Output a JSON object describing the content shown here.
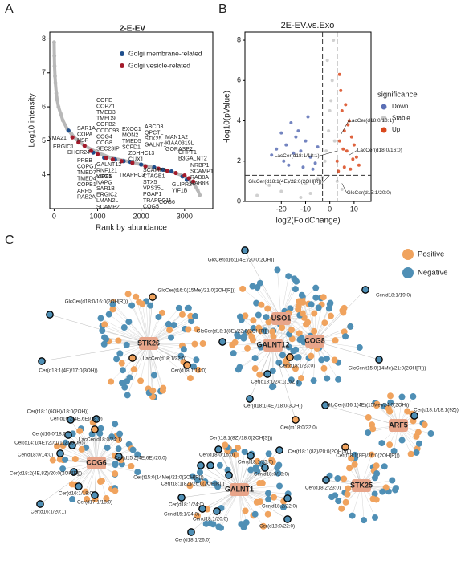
{
  "panels": [
    "A",
    "B",
    "C"
  ],
  "chart_data": [
    {
      "type": "rank",
      "title": "2-E-EV",
      "xlabel": "Rank by abundance",
      "ylabel": "Log10 intensity",
      "xlim": [
        -100,
        3650
      ],
      "xticks": [
        0,
        1000,
        2000,
        3000
      ],
      "ylim": [
        3,
        8.2
      ],
      "yticks": [
        4,
        5,
        6,
        7,
        8
      ],
      "curve": {
        "color": "#b8b8b8",
        "x": [
          0,
          5,
          10,
          20,
          30,
          50,
          70,
          100,
          150,
          200,
          300,
          400,
          500,
          700,
          1000,
          1300,
          1600,
          2000,
          2400,
          2800,
          3000,
          3200,
          3300,
          3350
        ],
        "y": [
          7.9,
          7.5,
          7.2,
          6.9,
          6.7,
          6.4,
          6.2,
          6.0,
          5.8,
          5.6,
          5.35,
          5.2,
          5.05,
          4.85,
          4.65,
          4.5,
          4.42,
          4.3,
          4.18,
          4.05,
          3.95,
          3.75,
          3.55,
          3.4
        ]
      },
      "series": [
        {
          "name": "Golgi membrane-related",
          "color": "#1f4e8c",
          "x": [
            330,
            900,
            1150,
            1400,
            1600,
            1750,
            2000,
            2300,
            2500,
            2700,
            2950,
            3050
          ],
          "values": [
            5.3,
            4.65,
            4.5,
            4.45,
            4.4,
            4.38,
            4.3,
            4.22,
            4.15,
            4.1,
            3.95,
            3.85
          ]
        },
        {
          "name": "Golgi vesicle-related",
          "color": "#a31a2a",
          "x": [
            420,
            560,
            700,
            850,
            1000,
            1200,
            1350,
            1550,
            1800,
            2100,
            2400,
            2600,
            2800,
            3000,
            3100,
            3200
          ],
          "values": [
            5.1,
            4.95,
            4.85,
            4.7,
            4.6,
            4.5,
            4.45,
            4.4,
            4.35,
            4.25,
            4.18,
            4.12,
            4.05,
            3.98,
            3.9,
            3.8
          ]
        }
      ],
      "label_groups": [
        {
          "color": "#a31a2a",
          "labels": [
            "SAR1A",
            "COPA",
            "NSF"
          ]
        },
        {
          "color": "#a31a2a",
          "labels": [
            "ERGIC1"
          ]
        },
        {
          "color": "#1f4e8c",
          "labels": [
            "VMA21"
          ]
        },
        {
          "color": "#1f4e8c",
          "labels": [
            "DHCR24"
          ]
        },
        {
          "color": "#a31a2a",
          "labels": [
            "PREB",
            "COPG1",
            "TMED7",
            "TMED4",
            "COPB1",
            "ARF5",
            "RAB2A"
          ]
        },
        {
          "color": "#a31a2a",
          "labels": [
            "COPE",
            "COPZ1",
            "TMED3",
            "TMED9",
            "COPB2",
            "CCDC93",
            "COG4",
            "COG8",
            "SEC23IP"
          ]
        },
        {
          "color": "#a31a2a",
          "labels": [
            "EXOC1",
            "MON2",
            "TMED5",
            "SCFD1"
          ]
        },
        {
          "color": "#1f4e8c",
          "labels": [
            "ABCD3",
            "QPCTL",
            "STK25",
            "GALNT1"
          ]
        },
        {
          "color": "#1f4e8c",
          "labels": [
            "MAN1A2",
            "KIAA0319L",
            "GORASP2"
          ]
        },
        {
          "color": "#1f4e8c",
          "labels": [
            "ZDHHC13",
            "CUX1"
          ]
        },
        {
          "color": "#1f4e8c",
          "labels": [
            "GALNT12",
            "RNF121",
            "USO1"
          ]
        },
        {
          "color": "#a31a2a",
          "labels": [
            "YIPF5",
            "NAPG",
            "SAR1B",
            "ERGIC2",
            "LMAN2L",
            "SCAMP2"
          ]
        },
        {
          "color": "#a31a2a",
          "labels": [
            "TRAPPC3"
          ]
        },
        {
          "color": "#a31a2a",
          "labels": [
            "SCAMP3",
            "CTAGE1",
            "STX5",
            "VPS35L",
            "PGAP1",
            "TRAPPC11",
            "COG5"
          ]
        },
        {
          "color": "#1f4e8c",
          "labels": [
            "CHPT1",
            "B3GALNT2"
          ]
        },
        {
          "color": "#1f4e8c",
          "labels": [
            "GLIPR2",
            "YIF1B"
          ]
        },
        {
          "color": "#a31a2a",
          "labels": [
            "NRBP1",
            "SCAMP1",
            "RAB8A",
            "RAB8B"
          ]
        },
        {
          "color": "#a31a2a",
          "labels": [
            "COG6"
          ]
        }
      ]
    },
    {
      "type": "volcano",
      "title": "2E-EV.vs.Exo",
      "xlabel": "log2(FoldChange)",
      "ylabel": "-log10(pValue)",
      "xlim": [
        -35,
        17
      ],
      "xticks": [
        -20,
        -10,
        0,
        10
      ],
      "ylim": [
        0,
        8.4
      ],
      "yticks": [
        0,
        2,
        4,
        6,
        8
      ],
      "vlines": [
        -3,
        3
      ],
      "hline": 1.3,
      "legend_title": "significance",
      "series": [
        {
          "name": "Down",
          "color": "#5b6fb5",
          "x": [
            -24,
            -22,
            -20,
            -18,
            -16,
            -14,
            -12,
            -10,
            -8,
            -6,
            -19,
            -15,
            -11,
            -7,
            -5,
            -13,
            -17,
            -9
          ],
          "values": [
            2.3,
            2.6,
            3.4,
            2.8,
            3.9,
            3.2,
            2.5,
            3.0,
            2.2,
            1.9,
            2.0,
            2.4,
            1.7,
            1.6,
            2.7,
            3.5,
            1.8,
            4.2
          ]
        },
        {
          "name": "Stable",
          "color": "#c8c8c8",
          "x": [
            -30,
            -25,
            -20,
            -15,
            -10,
            -5,
            -2,
            0,
            1,
            2,
            -1,
            -3,
            3,
            5,
            -8,
            -12,
            0.5,
            -0.5,
            1.5,
            -1.5
          ],
          "values": [
            0.3,
            0.8,
            0.5,
            1.0,
            0.9,
            1.1,
            2.0,
            4.5,
            6.0,
            3.0,
            7.0,
            1.2,
            1.0,
            0.6,
            0.4,
            0.2,
            5.0,
            3.5,
            8.0,
            2.5
          ]
        },
        {
          "name": "Up",
          "color": "#d9481c",
          "x": [
            3,
            4,
            5,
            6,
            7,
            8,
            9,
            10,
            11,
            12,
            4.5,
            6.5,
            8.5,
            3.5,
            5.5,
            7.5,
            9.5,
            4,
            6
          ],
          "values": [
            2.0,
            3.0,
            4.5,
            3.5,
            2.5,
            4.0,
            3.2,
            2.8,
            2.2,
            1.8,
            5.5,
            4.8,
            1.6,
            1.5,
            2.6,
            3.8,
            2.1,
            6.3,
            1.7
          ]
        }
      ],
      "annotations": [
        {
          "text": "LacCer(d18:0/18:1)",
          "x": 4.5,
          "y": 3.3
        },
        {
          "text": "LacCer(d18:0/16:0)",
          "x": 8,
          "y": 2.3
        },
        {
          "text": "LacCer(d18:1/18:1)",
          "x": 3,
          "y": 2.5
        },
        {
          "text": "GlcCer(d18:1(4E)/22:0(2OH[R]))",
          "x": 0,
          "y": 1.3
        },
        {
          "text": "GlcCer(d15:1/20:0)",
          "x": 5,
          "y": 0.9
        }
      ]
    },
    {
      "type": "network",
      "legend": [
        {
          "name": "Positive",
          "color": "#f0a35e"
        },
        {
          "name": "Negative",
          "color": "#4f8fb5"
        }
      ],
      "hubs": [
        "STK26",
        "USO1",
        "GALNT12",
        "COG8",
        "ARF5",
        "STK25",
        "COG6",
        "GALNT1"
      ],
      "nodes": [
        {
          "label": "GlcCer(d16:1(4E)/20:0(2OH))",
          "sign": "Negative",
          "hub": 1
        },
        {
          "label": "GlcCer(t16:0(15Me)/21:0(2OH[R]))",
          "sign": "Positive",
          "hub": 0
        },
        {
          "label": "GlcCer(d18:0/16:0(2OH[R]))",
          "sign": "Negative",
          "hub": 0
        },
        {
          "label": "Cer(d18:1/19:0)",
          "sign": "Negative",
          "hub": 3
        },
        {
          "label": "GlcCer(d18:1(8E)/22:0(2OH[R]))",
          "sign": "Negative",
          "hub": 2
        },
        {
          "label": "LacCer(d18:1/22:0)",
          "sign": "Positive",
          "hub": 0
        },
        {
          "label": "Cer(d18:1(4E)/17:0(3OH))",
          "sign": "Negative",
          "hub": 0
        },
        {
          "label": "Cer(d18:1/14:0)",
          "sign": "Positive",
          "hub": 0
        },
        {
          "label": "Cer(d18:1/23:0)",
          "sign": "Positive",
          "hub": 2
        },
        {
          "label": "GlcCer(t15:0(14Me)/21:0(2OH[R]))",
          "sign": "Negative",
          "hub": 3
        },
        {
          "label": "Cer(d18:1/24:1(15Z))",
          "sign": "Negative",
          "hub": 2
        },
        {
          "label": "Cer(d18:1(4E)/18:0(3OH))",
          "sign": "Negative",
          "hub": 2
        },
        {
          "label": "GlcCer(d16:1(4E)(15Me)/24:0(2OH))",
          "sign": "Negative",
          "hub": 4
        },
        {
          "label": "Cer(d18:1/18:1(9Z))",
          "sign": "Negative",
          "hub": 4
        },
        {
          "label": "Cer(t18:1(6OH)/18:0(2OH))",
          "sign": "Negative",
          "hub": 6
        },
        {
          "label": "Cer(d16:2(4E,6E)/18:0)",
          "sign": "Negative",
          "hub": 6
        },
        {
          "label": "Cer(m18:0/22:0)",
          "sign": "Positive",
          "hub": 2
        },
        {
          "label": "Cer(d16:0/18:0)",
          "sign": "Negative",
          "hub": 6
        },
        {
          "label": "LacCer(d18:0/24:1)",
          "sign": "Positive",
          "hub": 6
        },
        {
          "label": "Cer(d14:1(4E)/20:1(11Z)(3OH))",
          "sign": "Negative",
          "hub": 6
        },
        {
          "label": "Cer(d18:0/14:0)",
          "sign": "Negative",
          "hub": 6
        },
        {
          "label": "Cer(d15:2(4E,6E)/20:0)",
          "sign": "Negative",
          "hub": 6
        },
        {
          "label": "Cer(d18:2(4E,8Z)/20:0(2OH[R]))",
          "sign": "Negative",
          "hub": 6
        },
        {
          "label": "Cer(t18:1(8Z)/18:0(2OH[S]))",
          "sign": "Negative",
          "hub": 7
        },
        {
          "label": "Cer(t18:1(8Z)/20:0(2OH[S]))",
          "sign": "Negative",
          "hub": 7
        },
        {
          "label": "Cer(d18:0/16:0)",
          "sign": "Negative",
          "hub": 7
        },
        {
          "label": "Cer(d18:1/25:0)",
          "sign": "Negative",
          "hub": 7
        },
        {
          "label": "Cer(t18:1(8E)/26:0(2OH[R]))",
          "sign": "Positive",
          "hub": 5
        },
        {
          "label": "Cer(t15:0(14Me)/21:0(2OH[R]))",
          "sign": "Negative",
          "hub": 7
        },
        {
          "label": "Cer(t18:1(8Z)/26:0(2OH[R]))",
          "sign": "Negative",
          "hub": 7
        },
        {
          "label": "Cer(d18:0/18:0)",
          "sign": "Negative",
          "hub": 7
        },
        {
          "label": "Cer(d16:1/18:0)",
          "sign": "Negative",
          "hub": 6
        },
        {
          "label": "Cer(d17:1/18:0)",
          "sign": "Negative",
          "hub": 6
        },
        {
          "label": "Cer(d16:1/20:1)",
          "sign": "Negative",
          "hub": 6
        },
        {
          "label": "Cer(d18:2/23:0)",
          "sign": "Negative",
          "hub": 5
        },
        {
          "label": "Cer(d18:1/24:0)",
          "sign": "Negative",
          "hub": 7
        },
        {
          "label": "Cer(d18:2/22:0)",
          "sign": "Negative",
          "hub": 7
        },
        {
          "label": "Cer(d15:1/24:0)",
          "sign": "Negative",
          "hub": 7
        },
        {
          "label": "Cer(d18:1/20:0)",
          "sign": "Negative",
          "hub": 7
        },
        {
          "label": "Cer(d18:0/22:0)",
          "sign": "Negative",
          "hub": 7
        },
        {
          "label": "Cer(d18:1/26:0)",
          "sign": "Negative",
          "hub": 7
        }
      ]
    }
  ]
}
